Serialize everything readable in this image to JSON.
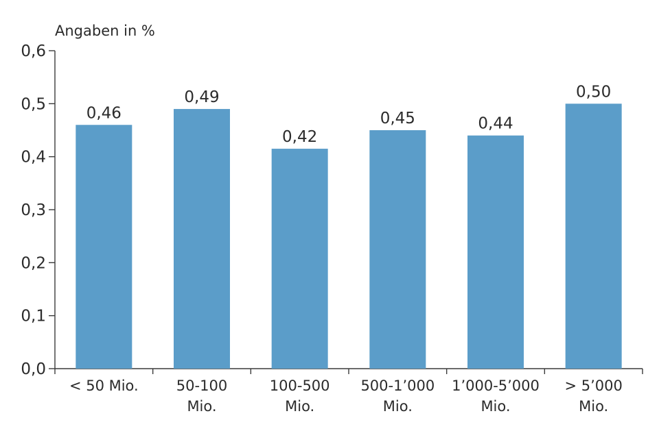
{
  "chart_data": {
    "type": "bar",
    "title": "",
    "unit_label": "Angaben in %",
    "xlabel": "",
    "ylabel": "",
    "categories": [
      [
        "< 50 Mio."
      ],
      [
        "50-100",
        "Mio."
      ],
      [
        "100-500",
        "Mio."
      ],
      [
        "500-1’000",
        "Mio."
      ],
      [
        "1’000-5’000",
        "Mio."
      ],
      [
        "> 5’000",
        "Mio."
      ]
    ],
    "values": [
      0.46,
      0.49,
      0.415,
      0.45,
      0.44,
      0.5
    ],
    "value_labels": [
      "0,46",
      "0,49",
      "0,42",
      "0,45",
      "0,44",
      "0,50"
    ],
    "ylim": [
      0,
      0.6
    ],
    "yticks": [
      0.0,
      0.1,
      0.2,
      0.3,
      0.4,
      0.5,
      0.6
    ],
    "ytick_labels": [
      "0,0",
      "0,1",
      "0,2",
      "0,3",
      "0,4",
      "0,5",
      "0,6"
    ],
    "grid": false,
    "legend": "none",
    "bar_color": "#5b9dc9"
  }
}
